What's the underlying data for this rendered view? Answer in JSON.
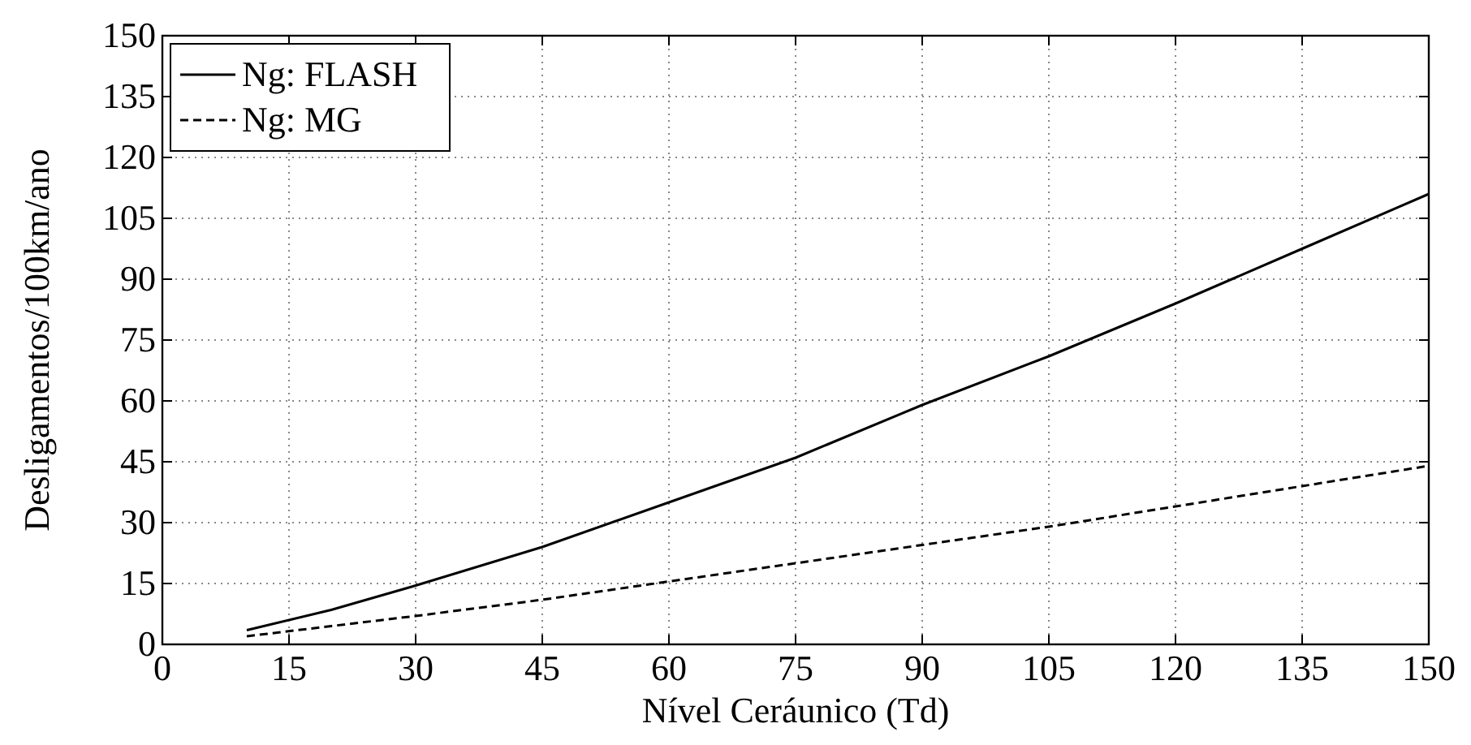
{
  "chart_data": {
    "type": "line",
    "xlabel": "Nível Ceráunico (Td)",
    "ylabel": "Desligamentos/100km/ano",
    "x": [
      10,
      20,
      30,
      45,
      60,
      75,
      90,
      105,
      120,
      135,
      150
    ],
    "series": [
      {
        "name": "Ng: FLASH",
        "color": "#000000",
        "line_style": "solid",
        "values": [
          3.5,
          8.5,
          14.5,
          24,
          35,
          46,
          59,
          71,
          84,
          97.5,
          111
        ]
      },
      {
        "name": "Ng: MG",
        "color": "#000000",
        "line_style": "dashed",
        "values": [
          2,
          4.5,
          7,
          11,
          15.5,
          20,
          24.5,
          29,
          34,
          39,
          44
        ]
      }
    ],
    "xlim": [
      0,
      150
    ],
    "xticks": [
      0,
      15,
      30,
      45,
      60,
      75,
      90,
      105,
      120,
      135,
      150
    ],
    "ylim": [
      0,
      150
    ],
    "yticks": [
      0,
      15,
      30,
      45,
      60,
      75,
      90,
      105,
      120,
      135,
      150
    ],
    "grid": true,
    "legend": "top left",
    "marker": "none"
  }
}
